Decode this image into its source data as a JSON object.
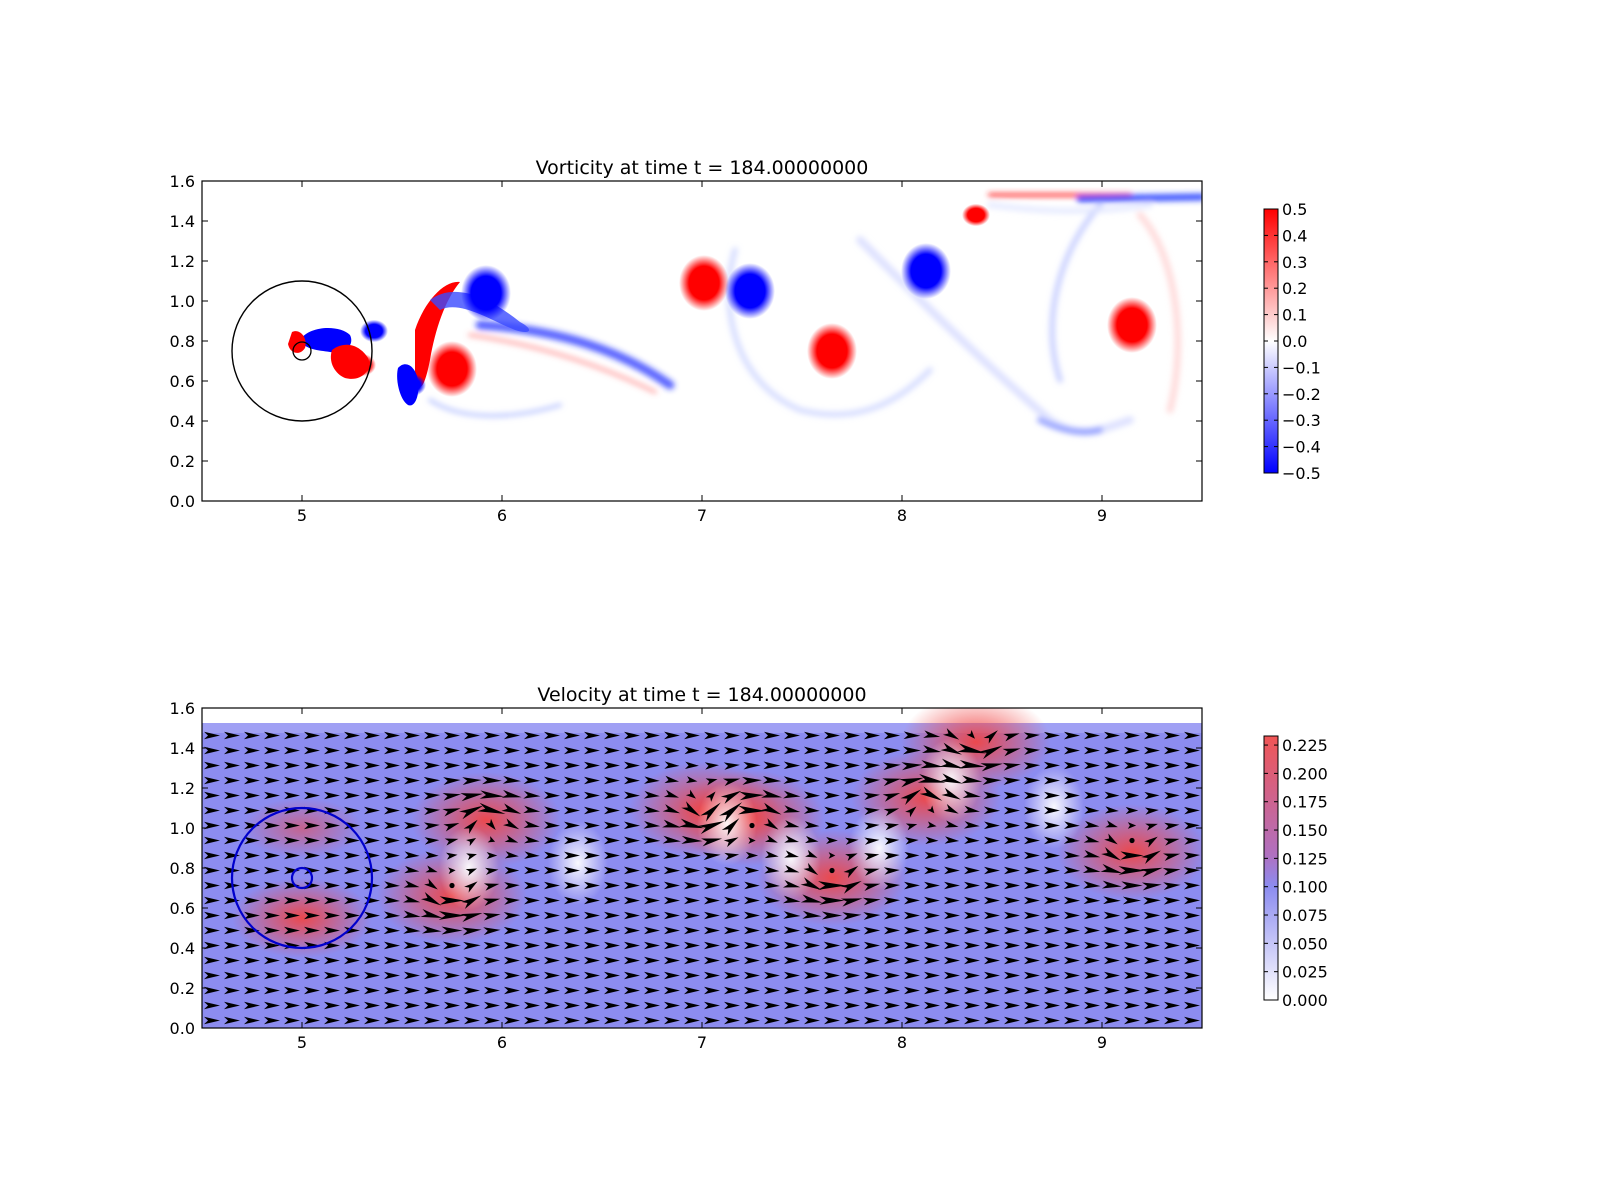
{
  "chart_data": [
    {
      "type": "heatmap",
      "title": "Vorticity at time t =   184.00000000",
      "x_ticks": [
        "5",
        "6",
        "7",
        "8",
        "9"
      ],
      "x_tick_values": [
        5,
        6,
        7,
        8,
        9
      ],
      "y_ticks": [
        "0.0",
        "0.2",
        "0.4",
        "0.6",
        "0.8",
        "1.0",
        "1.2",
        "1.4",
        "1.6"
      ],
      "y_tick_values": [
        0.0,
        0.2,
        0.4,
        0.6,
        0.8,
        1.0,
        1.2,
        1.4,
        1.6
      ],
      "xlim": [
        4.5,
        9.5
      ],
      "ylim": [
        0.0,
        1.6
      ],
      "colormap": "bwr",
      "colors": {
        "negative": "#0000ff",
        "zero": "#ffffff",
        "positive": "#ff0000"
      },
      "colorbar": {
        "range": [
          -0.5,
          0.5
        ],
        "ticks": [
          "0.5",
          "0.4",
          "0.3",
          "0.2",
          "0.1",
          "0.0",
          "−0.1",
          "−0.2",
          "−0.3",
          "−0.4",
          "−0.5"
        ],
        "tick_values": [
          0.5,
          0.4,
          0.3,
          0.2,
          0.1,
          0.0,
          -0.1,
          -0.2,
          -0.3,
          -0.4,
          -0.5
        ]
      },
      "vortices": [
        {
          "x": 5.92,
          "y": 1.04,
          "value": -0.5
        },
        {
          "x": 5.75,
          "y": 0.66,
          "value": 0.5
        },
        {
          "x": 5.55,
          "y": 0.58,
          "value": -0.4
        },
        {
          "x": 5.3,
          "y": 0.68,
          "value": 0.45
        },
        {
          "x": 5.36,
          "y": 0.85,
          "value": -0.45
        },
        {
          "x": 7.01,
          "y": 1.09,
          "value": 0.5
        },
        {
          "x": 7.24,
          "y": 1.05,
          "value": -0.5
        },
        {
          "x": 7.65,
          "y": 0.75,
          "value": 0.5
        },
        {
          "x": 8.12,
          "y": 1.15,
          "value": -0.5
        },
        {
          "x": 8.37,
          "y": 1.43,
          "value": 0.45
        },
        {
          "x": 9.15,
          "y": 0.88,
          "value": 0.5
        }
      ],
      "annotations": [
        {
          "shape": "circle",
          "center": [
            5.0,
            0.75
          ],
          "radius_x": 0.35,
          "color": "#000000"
        }
      ]
    },
    {
      "type": "heatmap",
      "title": "Velocity at time t =   184.00000000",
      "x_ticks": [
        "5",
        "6",
        "7",
        "8",
        "9"
      ],
      "x_tick_values": [
        5,
        6,
        7,
        8,
        9
      ],
      "y_ticks": [
        "0.0",
        "0.2",
        "0.4",
        "0.6",
        "0.8",
        "1.0",
        "1.2",
        "1.4",
        "1.6"
      ],
      "y_tick_values": [
        0.0,
        0.2,
        0.4,
        0.6,
        0.8,
        1.0,
        1.2,
        1.4,
        1.6
      ],
      "xlim": [
        4.5,
        9.5
      ],
      "ylim": [
        0.0,
        1.6
      ],
      "data_ylim": [
        0.0,
        1.52
      ],
      "colors": {
        "low": "#ffffff",
        "mid": "#8c8cf0",
        "high": "#f05555",
        "arrow": "#000000"
      },
      "base_speed": 0.1,
      "colorbar": {
        "range": [
          0.0,
          0.233
        ],
        "ticks": [
          "0.225",
          "0.200",
          "0.175",
          "0.150",
          "0.125",
          "0.100",
          "0.075",
          "0.050",
          "0.025",
          "0.000"
        ],
        "tick_values": [
          0.225,
          0.2,
          0.175,
          0.15,
          0.125,
          0.1,
          0.075,
          0.05,
          0.025,
          0.0
        ]
      },
      "vortices": [
        {
          "x": 5.92,
          "y": 1.04,
          "strength": -1
        },
        {
          "x": 5.75,
          "y": 0.66,
          "strength": 1
        },
        {
          "x": 7.01,
          "y": 1.09,
          "strength": 1
        },
        {
          "x": 7.24,
          "y": 1.05,
          "strength": -1
        },
        {
          "x": 7.65,
          "y": 0.75,
          "strength": 1
        },
        {
          "x": 8.12,
          "y": 1.15,
          "strength": -1
        },
        {
          "x": 8.37,
          "y": 1.43,
          "strength": 1
        },
        {
          "x": 9.15,
          "y": 0.88,
          "strength": 1
        }
      ],
      "annotations": [
        {
          "shape": "circle",
          "center": [
            5.0,
            0.75
          ],
          "radius_x": 0.35,
          "color": "#0000cc"
        },
        {
          "shape": "circle",
          "center": [
            5.0,
            0.75
          ],
          "radius_x": 0.05,
          "color": "#0000cc"
        }
      ]
    }
  ]
}
